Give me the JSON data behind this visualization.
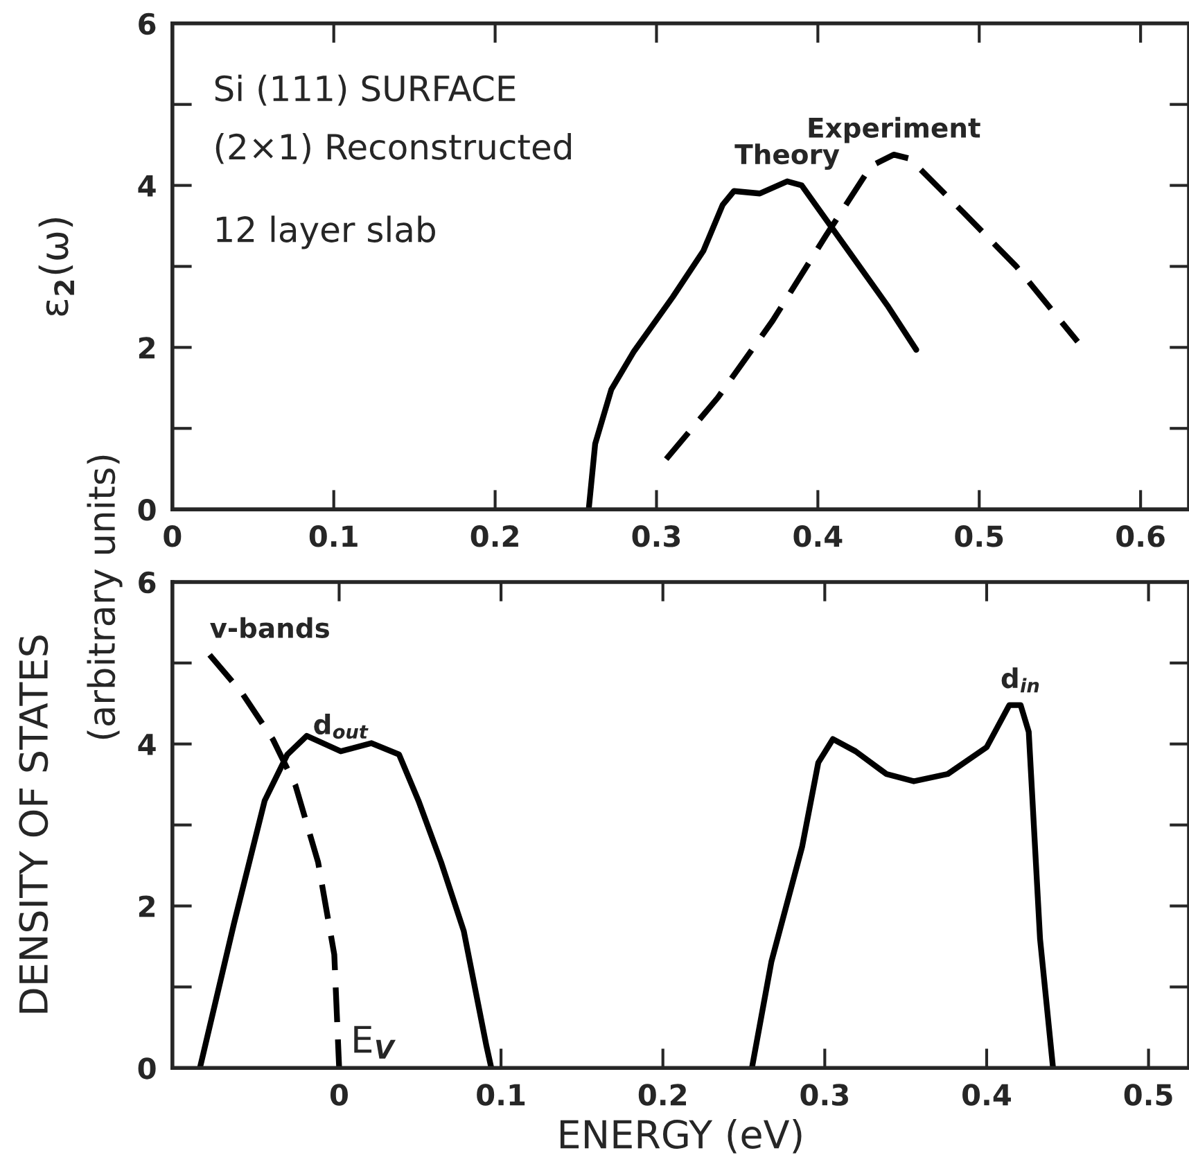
{
  "chart_data": [
    {
      "type": "line",
      "ylabel": "ε$_{2}$(ω)",
      "xlim": [
        0,
        0.63
      ],
      "ylim": [
        0,
        6
      ],
      "xticks": [
        0,
        0.1,
        0.2,
        0.3,
        0.4,
        0.5,
        0.6
      ],
      "yticks": [
        0,
        {
          "value": 1,
          "label": null
        },
        2,
        {
          "value": 3,
          "label": null
        },
        4,
        {
          "value": 5,
          "label": null
        },
        6
      ],
      "annotations": [
        "Si (111) SURFACE",
        "(2×1) Reconstructed",
        "12 layer slab"
      ],
      "grid": false,
      "legend": false,
      "series": [
        {
          "name": "Theory",
          "color": "#000000",
          "line_style": "solid",
          "x": [
            0.258,
            0.262,
            0.272,
            0.286,
            0.31,
            0.329,
            0.341,
            0.348,
            0.364,
            0.381,
            0.39,
            0.419,
            0.443,
            0.461
          ],
          "values": [
            0,
            0.81,
            1.48,
            1.95,
            2.62,
            3.19,
            3.76,
            3.93,
            3.9,
            4.05,
            4.0,
            3.19,
            2.52,
            1.97
          ]
        },
        {
          "name": "Experiment",
          "color": "#000000",
          "line_style": "dashed",
          "x": [
            0.306,
            0.338,
            0.372,
            0.405,
            0.433,
            0.447,
            0.457,
            0.49,
            0.523,
            0.561
          ],
          "values": [
            0.62,
            1.38,
            2.33,
            3.38,
            4.24,
            4.38,
            4.33,
            3.67,
            3.0,
            2.07
          ]
        }
      ]
    },
    {
      "type": "line",
      "ylabel": "DENSITY OF STATES",
      "xlabel": "ENERGY (eV)",
      "xlim": [
        -0.103,
        0.525
      ],
      "ylim": [
        0,
        6
      ],
      "xticks": [
        0,
        0.1,
        0.2,
        0.3,
        0.4,
        0.5
      ],
      "yticks": [
        0,
        {
          "value": 1,
          "label": null
        },
        2,
        {
          "value": 3,
          "label": null
        },
        4,
        {
          "value": 5,
          "label": null
        },
        6
      ],
      "annotations": [
        "(arbitrary units)",
        {
          "text": "E$_{V}$",
          "x": 0,
          "y": 0
        }
      ],
      "grid": false,
      "legend": false,
      "series": [
        {
          "name": "v-bands",
          "color": "#000000",
          "line_style": "dashed",
          "x": [
            -0.08,
            -0.06,
            -0.041,
            -0.027,
            -0.013,
            -0.003,
            0.0
          ],
          "values": [
            5.1,
            4.63,
            4.06,
            3.49,
            2.54,
            1.4,
            0
          ]
        },
        {
          "name": "d$_{out}$",
          "color": "#000000",
          "line_style": "solid",
          "x": [
            -0.086,
            -0.065,
            -0.046,
            -0.032,
            -0.02,
            0.001,
            0.02,
            0.037,
            0.049,
            0.063,
            0.077,
            0.091,
            0.094
          ],
          "values": [
            0,
            1.78,
            3.3,
            3.87,
            4.1,
            3.91,
            4.01,
            3.87,
            3.3,
            2.54,
            1.69,
            0.27,
            0
          ]
        },
        {
          "name": "d$_{in}$",
          "color": "#000000",
          "line_style": "solid",
          "x": [
            0.255,
            0.267,
            0.286,
            0.296,
            0.305,
            0.319,
            0.338,
            0.355,
            0.376,
            0.4,
            0.414,
            0.421,
            0.426,
            0.433,
            0.441
          ],
          "values": [
            0,
            1.31,
            2.73,
            3.77,
            4.06,
            3.91,
            3.63,
            3.54,
            3.63,
            3.96,
            4.48,
            4.48,
            4.15,
            1.59,
            0
          ]
        }
      ]
    }
  ]
}
